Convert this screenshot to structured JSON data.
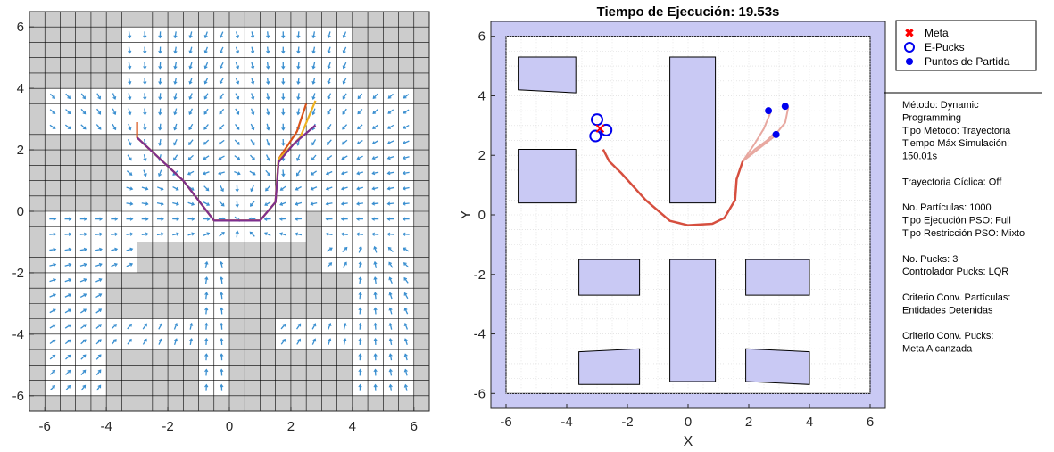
{
  "grid_plot": {
    "type": "vector_field_grid",
    "xlim": [
      -6.5,
      6.5
    ],
    "ylim": [
      -6.5,
      6.5
    ],
    "xticks": [
      -6,
      -4,
      -2,
      0,
      2,
      4,
      6
    ],
    "yticks": [
      -6,
      -4,
      -2,
      0,
      2,
      4,
      6
    ],
    "cell_size": 0.5,
    "colors": {
      "obstacle": "#cccccc",
      "free": "#ffffff",
      "gridline": "#000000",
      "arrow": "#3a8fd0"
    },
    "free_rects": [
      [
        -3.5,
        2.5,
        -1,
        6
      ],
      [
        1.5,
        4,
        2,
        6
      ],
      [
        -6,
        -3,
        2.5,
        4
      ],
      [
        -1.5,
        1.5,
        -1,
        2.5
      ],
      [
        -3.5,
        -1.5,
        0,
        2.5
      ],
      [
        1.5,
        3,
        0,
        2
      ],
      [
        3.5,
        6,
        2.5,
        4
      ],
      [
        3,
        6,
        -1,
        2.5
      ],
      [
        -6,
        1.5,
        -1,
        0
      ],
      [
        -6,
        -4,
        -6,
        -1
      ],
      [
        -4,
        -3,
        -2,
        -1
      ],
      [
        -4,
        -1,
        -4.5,
        -3.5
      ],
      [
        -1,
        0,
        -6,
        -1.5
      ],
      [
        1.5,
        4,
        -4.5,
        -3.5
      ],
      [
        4,
        6,
        -6,
        -1
      ],
      [
        3,
        4,
        -2,
        -1
      ]
    ],
    "paths": [
      {
        "color": "#d9541a",
        "points": [
          [
            -3,
            2.9
          ],
          [
            -3,
            2.4
          ],
          [
            -1.5,
            1
          ],
          [
            -0.5,
            -0.3
          ],
          [
            1,
            -0.3
          ],
          [
            1.5,
            0.3
          ],
          [
            1.6,
            1.7
          ],
          [
            2.2,
            2.6
          ],
          [
            2.5,
            3.5
          ]
        ]
      },
      {
        "color": "#edb120",
        "points": [
          [
            -3,
            2.4
          ],
          [
            -1.5,
            1
          ],
          [
            -0.5,
            -0.3
          ],
          [
            1,
            -0.3
          ],
          [
            1.5,
            0.3
          ],
          [
            1.6,
            1.7
          ],
          [
            2.3,
            2.4
          ],
          [
            2.8,
            3.6
          ]
        ]
      },
      {
        "color": "#7e2f8e",
        "points": [
          [
            -3,
            2.4
          ],
          [
            -1.5,
            1
          ],
          [
            -0.5,
            -0.3
          ],
          [
            1,
            -0.3
          ],
          [
            1.5,
            0.3
          ],
          [
            1.6,
            1.6
          ],
          [
            2.1,
            2.2
          ],
          [
            2.8,
            2.8
          ]
        ]
      }
    ]
  },
  "sim_plot": {
    "type": "scatter",
    "title": "Tiempo de Ejecución: 19.53s",
    "xlabel": "X",
    "ylabel": "Y",
    "xlim": [
      -6.5,
      6.5
    ],
    "ylim": [
      -6.5,
      6.5
    ],
    "xticks": [
      -6,
      -4,
      -2,
      0,
      2,
      4,
      6
    ],
    "yticks": [
      -6,
      -4,
      -2,
      0,
      2,
      4,
      6
    ],
    "arena": [
      -6,
      6,
      -6,
      6
    ],
    "colors": {
      "wall": "#c9c9f4",
      "obstacle": "#c9c9f4",
      "trajectory": "#d64f3f",
      "trail": "#e8a8a0",
      "puck": "#0000ee",
      "goal": "#ff0000"
    },
    "obstacles": [
      [
        [
          -5.6,
          5.3
        ],
        [
          -3.7,
          5.3
        ],
        [
          -3.7,
          4.1
        ],
        [
          -5.6,
          4.2
        ]
      ],
      [
        [
          -5.6,
          2.2
        ],
        [
          -3.7,
          2.2
        ],
        [
          -3.7,
          0.4
        ],
        [
          -5.6,
          0.4
        ]
      ],
      [
        [
          -0.6,
          5.3
        ],
        [
          0.9,
          5.3
        ],
        [
          0.9,
          0.4
        ],
        [
          -0.6,
          0.4
        ]
      ],
      [
        [
          -3.6,
          -1.5
        ],
        [
          -1.6,
          -1.5
        ],
        [
          -1.6,
          -2.7
        ],
        [
          -3.6,
          -2.7
        ]
      ],
      [
        [
          -0.6,
          -1.5
        ],
        [
          0.9,
          -1.5
        ],
        [
          0.9,
          -5.6
        ],
        [
          -0.6,
          -5.6
        ]
      ],
      [
        [
          1.9,
          -1.5
        ],
        [
          4,
          -1.5
        ],
        [
          4,
          -2.7
        ],
        [
          1.9,
          -2.7
        ]
      ],
      [
        [
          -3.6,
          -4.6
        ],
        [
          -1.6,
          -4.5
        ],
        [
          -1.6,
          -5.7
        ],
        [
          -3.6,
          -5.7
        ]
      ],
      [
        [
          1.9,
          -4.5
        ],
        [
          4,
          -4.6
        ],
        [
          4,
          -5.7
        ],
        [
          1.9,
          -5.6
        ]
      ]
    ],
    "trajectory": [
      [
        -2.8,
        2.2
      ],
      [
        -2.6,
        1.8
      ],
      [
        -2.2,
        1.4
      ],
      [
        -1.4,
        0.5
      ],
      [
        -0.6,
        -0.2
      ],
      [
        0,
        -0.35
      ],
      [
        0.8,
        -0.3
      ],
      [
        1.2,
        -0.1
      ],
      [
        1.55,
        0.5
      ],
      [
        1.6,
        1.2
      ],
      [
        1.8,
        1.8
      ]
    ],
    "trails": [
      [
        [
          1.8,
          1.8
        ],
        [
          2.3,
          2.2
        ],
        [
          2.8,
          2.6
        ],
        [
          3.2,
          3.1
        ],
        [
          3.3,
          3.6
        ]
      ],
      [
        [
          1.8,
          1.8
        ],
        [
          2.2,
          2.4
        ],
        [
          2.5,
          2.9
        ],
        [
          2.7,
          3.4
        ]
      ],
      [
        [
          1.8,
          1.8
        ],
        [
          2.2,
          2.2
        ],
        [
          2.6,
          2.5
        ],
        [
          2.9,
          2.8
        ]
      ]
    ],
    "goal": [
      -2.9,
      2.9
    ],
    "epucks": [
      [
        -3,
        3.2
      ],
      [
        -3.05,
        2.65
      ],
      [
        -2.7,
        2.85
      ]
    ],
    "starts": [
      [
        2.65,
        3.5
      ],
      [
        3.2,
        3.65
      ],
      [
        2.9,
        2.7
      ]
    ]
  },
  "legend": {
    "items": [
      {
        "label": "Meta",
        "marker": "x"
      },
      {
        "label": "E-Pucks",
        "marker": "circle"
      },
      {
        "label": "Puntos de Partida",
        "marker": "dot"
      }
    ]
  },
  "info": {
    "lines": [
      "Método: Dynamic",
      "Programming",
      "Tipo Método: Trayectoria",
      "Tiempo Máx Simulación:",
      "150.01s",
      "",
      "Trayectoria Cíclica: Off",
      "",
      "No. Partículas: 1000",
      "Tipo Ejecución PSO: Full",
      "Tipo Restricción PSO: Mixto",
      "",
      "No. Pucks: 3",
      "Controlador Pucks: LQR",
      "",
      "Criterio Conv. Partículas:",
      "Entidades Detenidas",
      "",
      "Criterio Conv. Pucks:",
      "Meta Alcanzada"
    ]
  }
}
